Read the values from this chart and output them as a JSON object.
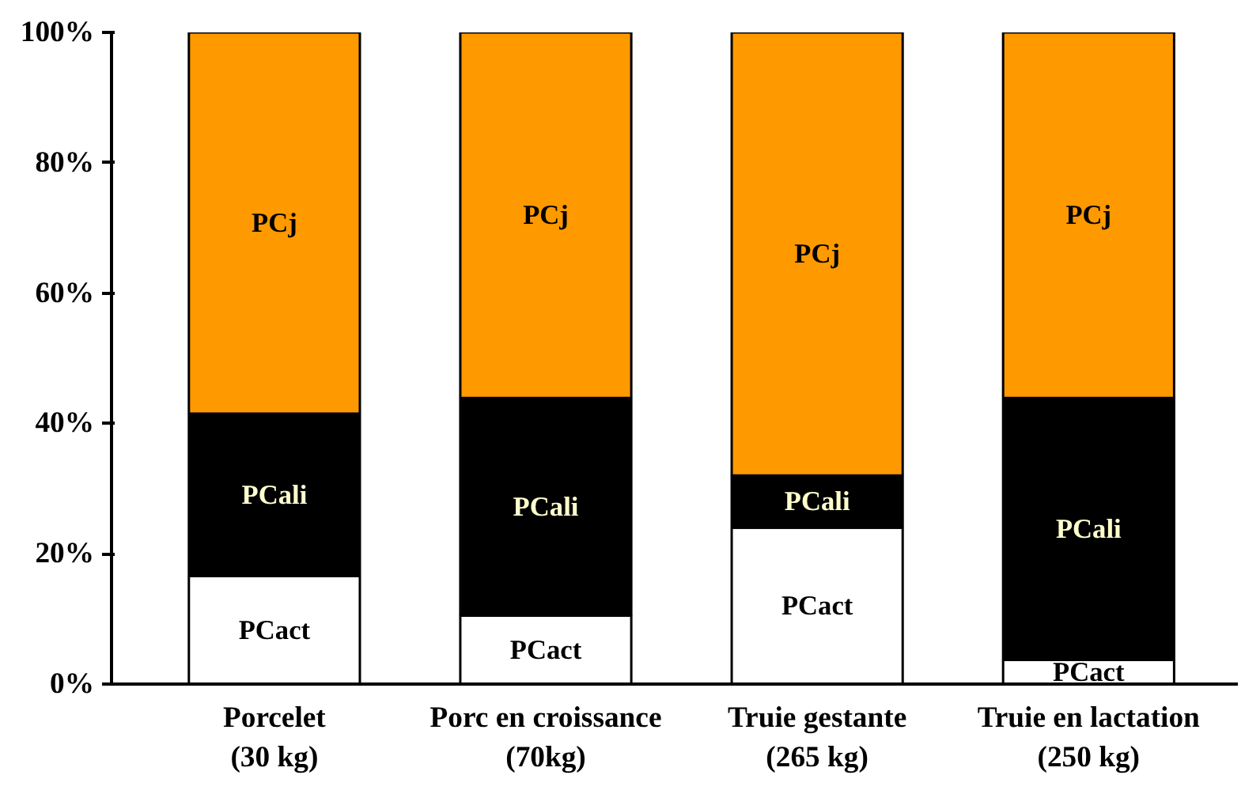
{
  "chart_data": {
    "type": "bar",
    "stacked": true,
    "categories": [
      "Porcelet\n(30 kg)",
      "Porc en croissance\n(70kg)",
      "Truie gestante\n(265 kg)",
      "Truie en lactation\n(250 kg)"
    ],
    "series": [
      {
        "name": "PCact",
        "color": "#ffffff",
        "values": [
          16.6,
          10.5,
          24,
          3.7
        ]
      },
      {
        "name": "PCali",
        "color": "#000000",
        "values": [
          24.9,
          33.4,
          8,
          40.2
        ]
      },
      {
        "name": "PCj",
        "color": "#ff9900",
        "values": [
          58.5,
          56.1,
          68,
          56.1
        ]
      }
    ],
    "ylim": [
      0,
      100
    ],
    "yticks": [
      {
        "value": 0,
        "label": "0%"
      },
      {
        "value": 20,
        "label": "20%"
      },
      {
        "value": 40,
        "label": "40%"
      },
      {
        "value": 60,
        "label": "60%"
      },
      {
        "value": 80,
        "label": "80%"
      },
      {
        "value": 100,
        "label": "100%"
      }
    ],
    "grid": false
  }
}
